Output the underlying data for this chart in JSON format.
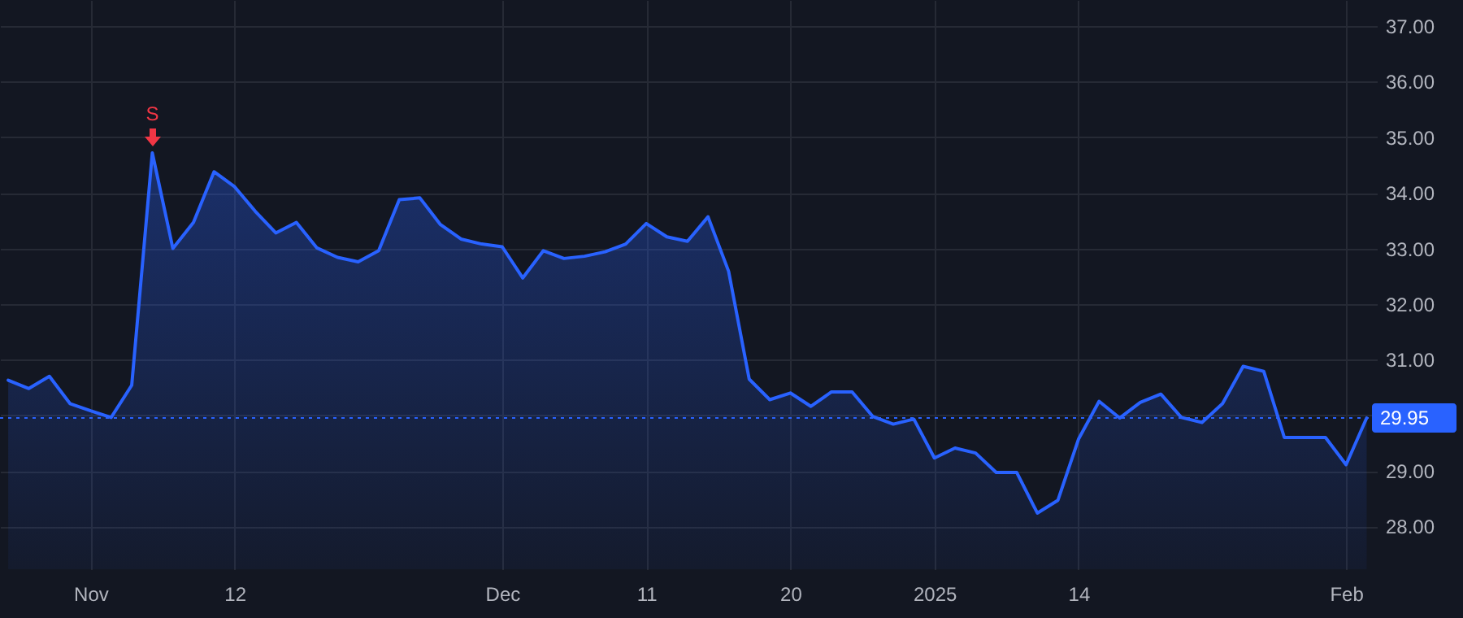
{
  "chart_data": {
    "type": "area",
    "categories": [
      null,
      null,
      null,
      null,
      "Nov",
      null,
      null,
      null,
      null,
      null,
      null,
      "12",
      null,
      null,
      null,
      null,
      null,
      null,
      null,
      null,
      null,
      null,
      null,
      null,
      "Dec",
      null,
      null,
      null,
      null,
      null,
      null,
      "11",
      null,
      null,
      null,
      null,
      null,
      null,
      "20",
      null,
      null,
      null,
      null,
      null,
      null,
      "2025",
      null,
      null,
      null,
      null,
      null,
      null,
      "14",
      null,
      null,
      null,
      null,
      null,
      null,
      null,
      null,
      null,
      null,
      null,
      null,
      "Feb",
      null
    ],
    "series": [
      {
        "color": "#2962ff",
        "values": [
          30.63,
          30.48,
          30.7,
          30.21,
          30.08,
          29.96,
          30.54,
          34.72,
          33.0,
          33.47,
          34.38,
          34.11,
          33.67,
          33.28,
          33.47,
          33.01,
          32.84,
          32.76,
          32.96,
          33.88,
          33.91,
          33.43,
          33.17,
          33.08,
          33.03,
          32.47,
          32.96,
          32.82,
          32.86,
          32.94,
          33.08,
          33.45,
          33.21,
          33.13,
          33.57,
          32.59,
          30.65,
          30.28,
          30.4,
          30.16,
          30.42,
          30.42,
          29.98,
          29.84,
          29.93,
          29.23,
          29.41,
          29.32,
          28.97,
          28.97,
          28.24,
          28.47,
          29.57,
          30.25,
          29.95,
          30.23,
          30.38,
          29.96,
          29.87,
          30.21,
          30.88,
          30.79,
          29.6,
          29.6,
          29.6,
          29.11,
          29.95
        ]
      }
    ],
    "ylim": [
      27.23,
      37.47
    ],
    "yticks": [
      {
        "value": 28,
        "label": "28.00"
      },
      {
        "value": 29,
        "label": "29.00"
      },
      {
        "value": 30,
        "label": null
      },
      {
        "value": 31,
        "label": "31.00"
      },
      {
        "value": 32,
        "label": "32.00"
      },
      {
        "value": 33,
        "label": "33.00"
      },
      {
        "value": 34,
        "label": "34.00"
      },
      {
        "value": 35,
        "label": "35.00"
      },
      {
        "value": 36,
        "label": "36.00"
      },
      {
        "value": 37,
        "label": "37.00"
      }
    ],
    "ref_lines": [
      {
        "axis": "y",
        "value": 29.95,
        "label": "29.95",
        "color": "#2962ff",
        "line_style": "dotted"
      }
    ],
    "annotations": [
      {
        "text": "S",
        "y": 34.72
      }
    ],
    "grid": true
  }
}
